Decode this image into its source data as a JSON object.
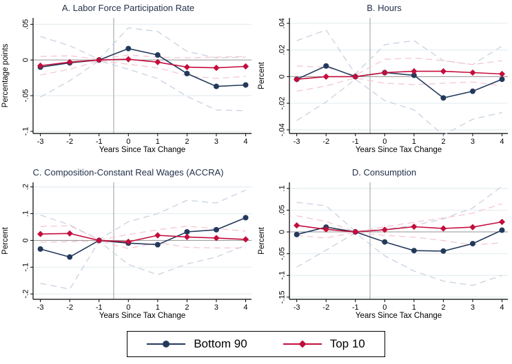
{
  "figure": {
    "colors": {
      "navy": "#23395c",
      "cranberry": "#c40d3c",
      "navy_ci": "#c9d1e0",
      "pink_ci": "#f4c6d3",
      "gridline": "#e4eef1",
      "zero_line": "#909090",
      "reference_line": "#ababab",
      "axis": "#000000",
      "title_text": "#22304a"
    },
    "legend": {
      "entries": [
        {
          "label": "Bottom 90",
          "marker": "circle",
          "color": "#23395c"
        },
        {
          "label": "Top 10",
          "marker": "diamond",
          "color": "#c40d3c"
        }
      ]
    }
  },
  "chart_data": [
    {
      "panel": "A",
      "type": "line",
      "title": "A. Labor Force Participation Rate",
      "xlabel": "Years Since Tax Change",
      "ylabel": "Percentage points",
      "x": [
        -3,
        -2,
        -1,
        0,
        1,
        2,
        3,
        4
      ],
      "xticks": [
        -3,
        -2,
        -1,
        0,
        1,
        2,
        3,
        4
      ],
      "xlim": [
        -3.25,
        4.2
      ],
      "ylim": [
        -0.103,
        0.059
      ],
      "yticks": [
        {
          "value": 0.05,
          "label": ".05"
        },
        {
          "value": 0,
          "label": "0"
        },
        {
          "value": -0.05,
          "label": "-.05"
        },
        {
          "value": -0.1,
          "label": "-.1"
        }
      ],
      "reference_vline_x": -0.5,
      "grid": true,
      "series": [
        {
          "name": "Bottom 90",
          "role": "main",
          "marker": "circle",
          "color": "#23395c",
          "values": [
            -0.01,
            -0.004,
            0,
            0.016,
            0.007,
            -0.019,
            -0.037,
            -0.035
          ]
        },
        {
          "name": "Top 10",
          "role": "main",
          "marker": "diamond",
          "color": "#c40d3c",
          "values": [
            -0.008,
            -0.003,
            0,
            0.001,
            -0.003,
            -0.01,
            -0.011,
            -0.009
          ]
        },
        {
          "name": "Bottom 90 CI upper",
          "role": "ci",
          "color": "#c9d1e0",
          "values": [
            0.033,
            0.02,
            0.001,
            0.045,
            0.04,
            0.012,
            0.003,
            0.004
          ]
        },
        {
          "name": "Bottom 90 CI lower",
          "role": "ci",
          "color": "#c9d1e0",
          "values": [
            -0.052,
            -0.029,
            -0.001,
            -0.013,
            -0.026,
            -0.051,
            -0.07,
            -0.071
          ]
        },
        {
          "name": "Top 10 CI upper",
          "role": "ci",
          "color": "#f4c6d3",
          "values": [
            0.005,
            0.006,
            0.001,
            0.007,
            0.004,
            0.003,
            0.004,
            0.005
          ]
        },
        {
          "name": "Top 10 CI lower",
          "role": "ci",
          "color": "#f4c6d3",
          "values": [
            -0.021,
            -0.013,
            -0.001,
            -0.006,
            -0.011,
            -0.022,
            -0.026,
            -0.023
          ]
        }
      ]
    },
    {
      "panel": "B",
      "type": "line",
      "title": "B. Hours",
      "xlabel": "Years Since Tax Change",
      "ylabel": "Percent",
      "x": [
        -3,
        -2,
        -1,
        0,
        1,
        2,
        3,
        4
      ],
      "xticks": [
        -3,
        -2,
        -1,
        0,
        1,
        2,
        3,
        4
      ],
      "xlim": [
        -3.25,
        4.2
      ],
      "ylim": [
        -0.0427,
        0.0441
      ],
      "yticks": [
        {
          "value": 0.04,
          "label": ".04"
        },
        {
          "value": 0.02,
          "label": ".02"
        },
        {
          "value": 0,
          "label": "0"
        },
        {
          "value": -0.02,
          "label": "-.02"
        },
        {
          "value": -0.04,
          "label": "-.04"
        }
      ],
      "reference_vline_x": -0.5,
      "grid": true,
      "series": [
        {
          "name": "Bottom 90",
          "role": "main",
          "marker": "circle",
          "color": "#23395c",
          "values": [
            -0.002,
            0.008,
            0,
            0.003,
            0.001,
            -0.016,
            -0.011,
            -0.002
          ]
        },
        {
          "name": "Top 10",
          "role": "main",
          "marker": "diamond",
          "color": "#c40d3c",
          "values": [
            -0.002,
            0.0,
            0,
            0.003,
            0.004,
            0.004,
            0.003,
            0.002
          ]
        },
        {
          "name": "Bottom 90 CI upper",
          "role": "ci",
          "color": "#c9d1e0",
          "values": [
            0.027,
            0.035,
            0.002,
            0.024,
            0.027,
            0.012,
            0.009,
            0.023
          ]
        },
        {
          "name": "Bottom 90 CI lower",
          "role": "ci",
          "color": "#c9d1e0",
          "values": [
            -0.033,
            -0.019,
            -0.002,
            -0.018,
            -0.025,
            -0.044,
            -0.032,
            -0.027
          ]
        },
        {
          "name": "Top 10 CI upper",
          "role": "ci",
          "color": "#f4c6d3",
          "values": [
            0.008,
            0.007,
            0.001,
            0.013,
            0.014,
            0.012,
            0.009,
            0.012
          ]
        },
        {
          "name": "Top 10 CI lower",
          "role": "ci",
          "color": "#f4c6d3",
          "values": [
            -0.011,
            -0.007,
            -0.001,
            -0.005,
            -0.006,
            -0.005,
            -0.004,
            -0.007
          ]
        }
      ]
    },
    {
      "panel": "C",
      "type": "line",
      "title": "C. Composition-Constant Real Wages (ACCRA)",
      "xlabel": "Years Since Tax Change",
      "ylabel": "Percent",
      "x": [
        -3,
        -2,
        -1,
        0,
        1,
        2,
        3,
        4
      ],
      "xticks": [
        -3,
        -2,
        -1,
        0,
        1,
        2,
        3,
        4
      ],
      "xlim": [
        -3.25,
        4.2
      ],
      "ylim": [
        -0.22,
        0.217
      ],
      "yticks": [
        {
          "value": 0.2,
          "label": ".2"
        },
        {
          "value": 0.1,
          "label": ".1"
        },
        {
          "value": 0,
          "label": "0"
        },
        {
          "value": -0.1,
          "label": "-.1"
        },
        {
          "value": -0.2,
          "label": "-.2"
        }
      ],
      "reference_vline_x": -0.5,
      "grid": true,
      "series": [
        {
          "name": "Bottom 90",
          "role": "main",
          "marker": "circle",
          "color": "#23395c",
          "values": [
            -0.032,
            -0.062,
            0,
            -0.01,
            -0.016,
            0.032,
            0.04,
            0.085
          ]
        },
        {
          "name": "Top 10",
          "role": "main",
          "marker": "diamond",
          "color": "#c40d3c",
          "values": [
            0.024,
            0.026,
            0,
            -0.005,
            0.019,
            0.013,
            0.009,
            0.004
          ]
        },
        {
          "name": "Bottom 90 CI upper",
          "role": "ci",
          "color": "#c9d1e0",
          "values": [
            0.095,
            0.058,
            0.003,
            0.07,
            0.1,
            0.15,
            0.14,
            0.188
          ]
        },
        {
          "name": "Bottom 90 CI lower",
          "role": "ci",
          "color": "#c9d1e0",
          "values": [
            -0.16,
            -0.182,
            -0.003,
            -0.09,
            -0.128,
            -0.088,
            -0.062,
            -0.018
          ]
        },
        {
          "name": "Top 10 CI upper",
          "role": "ci",
          "color": "#f4c6d3",
          "values": [
            0.052,
            0.055,
            0.002,
            0.022,
            0.04,
            0.053,
            0.044,
            0.035
          ]
        },
        {
          "name": "Top 10 CI lower",
          "role": "ci",
          "color": "#f4c6d3",
          "values": [
            -0.006,
            -0.005,
            -0.002,
            -0.03,
            -0.008,
            -0.026,
            -0.028,
            -0.028
          ]
        }
      ]
    },
    {
      "panel": "D",
      "type": "line",
      "title": "D. Consumption",
      "xlabel": "Years Since Tax Change",
      "ylabel": "Percent",
      "x": [
        -3,
        -2,
        -1,
        0,
        1,
        2,
        3,
        4
      ],
      "xticks": [
        -3,
        -2,
        -1,
        0,
        1,
        2,
        3,
        4
      ],
      "xlim": [
        -3.25,
        4.2
      ],
      "ylim": [
        -0.155,
        0.114
      ],
      "yticks": [
        {
          "value": 0.1,
          "label": ".1"
        },
        {
          "value": 0.05,
          "label": ".05"
        },
        {
          "value": 0,
          "label": "0"
        },
        {
          "value": -0.05,
          "label": "-.05"
        },
        {
          "value": -0.1,
          "label": "-.1"
        },
        {
          "value": -0.15,
          "label": "-.15"
        }
      ],
      "reference_vline_x": -0.5,
      "grid": true,
      "series": [
        {
          "name": "Bottom 90",
          "role": "main",
          "marker": "circle",
          "color": "#23395c",
          "values": [
            -0.006,
            0.011,
            0,
            -0.023,
            -0.043,
            -0.044,
            -0.027,
            0.004
          ]
        },
        {
          "name": "Top 10",
          "role": "main",
          "marker": "diamond",
          "color": "#c40d3c",
          "values": [
            0.015,
            0.006,
            0,
            0.005,
            0.012,
            0.008,
            0.011,
            0.023
          ]
        },
        {
          "name": "Bottom 90 CI upper",
          "role": "ci",
          "color": "#c9d1e0",
          "values": [
            0.068,
            0.06,
            0.002,
            0.006,
            0.015,
            0.03,
            0.055,
            0.105
          ]
        },
        {
          "name": "Bottom 90 CI lower",
          "role": "ci",
          "color": "#c9d1e0",
          "values": [
            -0.081,
            -0.042,
            -0.002,
            -0.055,
            -0.09,
            -0.113,
            -0.123,
            -0.1
          ]
        },
        {
          "name": "Top 10 CI upper",
          "role": "ci",
          "color": "#f4c6d3",
          "values": [
            0.037,
            0.024,
            0.001,
            0.012,
            0.022,
            0.032,
            0.043,
            0.065
          ]
        },
        {
          "name": "Top 10 CI lower",
          "role": "ci",
          "color": "#f4c6d3",
          "values": [
            -0.008,
            -0.014,
            -0.001,
            -0.008,
            -0.012,
            -0.02,
            -0.03,
            -0.025
          ]
        }
      ]
    }
  ]
}
